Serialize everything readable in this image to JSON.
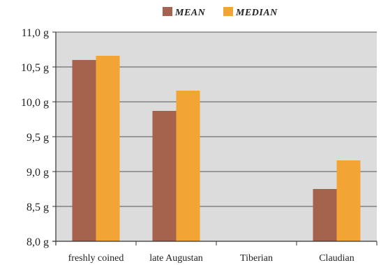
{
  "chart_data": {
    "type": "bar",
    "categories": [
      "freshly coined",
      "late Augustan",
      "Tiberian",
      "Claudian"
    ],
    "series": [
      {
        "name": "MEAN",
        "values": [
          10.6,
          9.87,
          null,
          8.75
        ]
      },
      {
        "name": "MEDIAN",
        "values": [
          10.66,
          10.16,
          null,
          9.16
        ]
      }
    ],
    "ylim": [
      8.0,
      11.0
    ],
    "y_ticks": [
      "8,0 g",
      "8,5 g",
      "9,0 g",
      "9,5 g",
      "10,0 g",
      "10,5 g",
      "11,0 g"
    ],
    "y_tick_values": [
      8.0,
      8.5,
      9.0,
      9.5,
      10.0,
      10.5,
      11.0
    ],
    "grid": true,
    "legend_position": "top-center",
    "colors": {
      "MEAN": "#a5624c",
      "MEDIAN": "#f2a535",
      "plot_background": "#dcdcdc",
      "grid": "#555555"
    }
  }
}
